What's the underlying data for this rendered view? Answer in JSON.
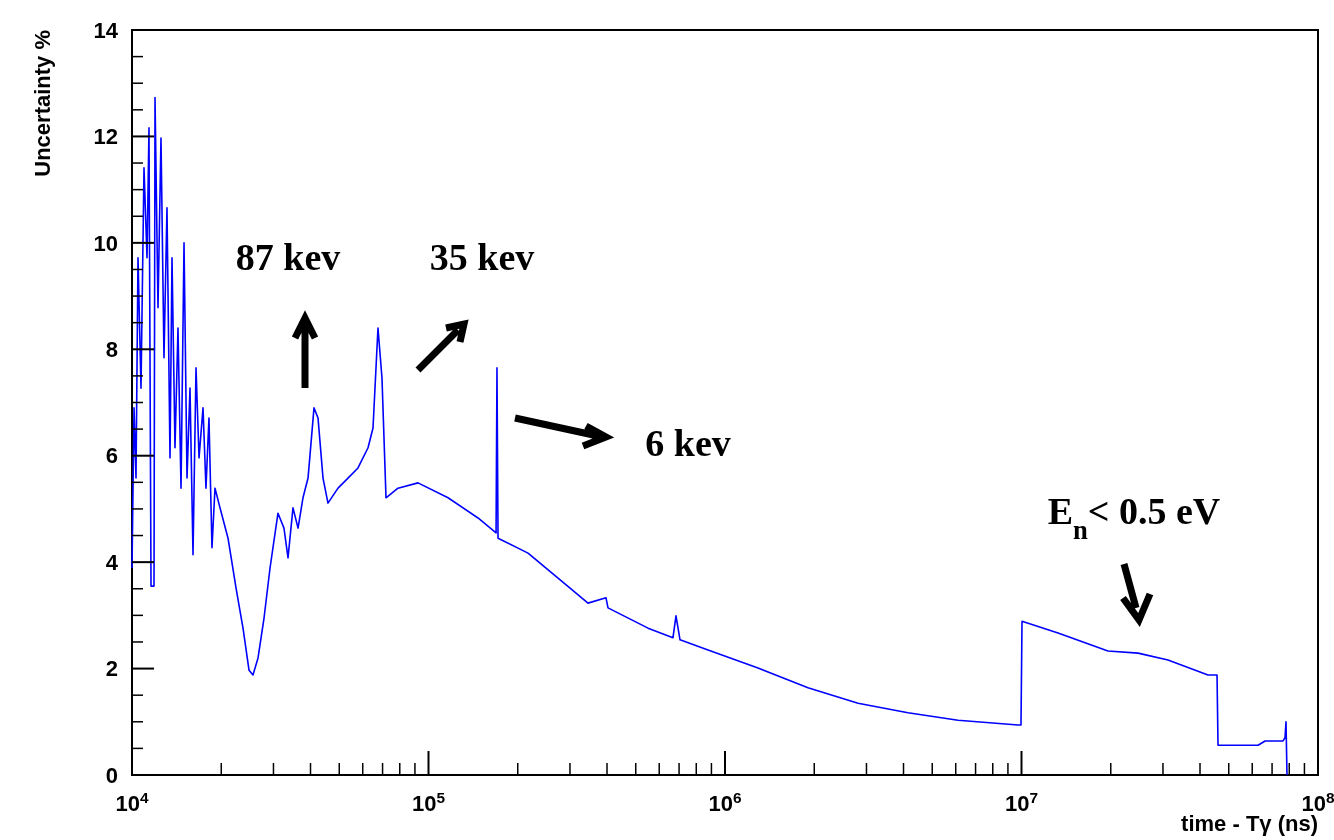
{
  "chart_data": {
    "type": "line",
    "xlabel": "time - Tγ (ns)",
    "ylabel": "Uncertainty %",
    "log": "x",
    "xlim": [
      10000,
      100000000
    ],
    "ylim": [
      0,
      14
    ],
    "xticks": [
      {
        "value": 10000,
        "label": "10$^{4}$"
      },
      {
        "value": 100000,
        "label": "10$^{5}$"
      },
      {
        "value": 1000000,
        "label": "10$^{6}$"
      },
      {
        "value": 10000000,
        "label": "10$^{7}$"
      },
      {
        "value": 100000000,
        "label": "10$^{8}$"
      }
    ],
    "yticks": [
      0,
      2,
      4,
      6,
      8,
      10,
      12,
      14
    ],
    "grid": false,
    "marker": "none",
    "line_style": "solid",
    "annotations": [
      "87 kev",
      "35 kev",
      "6 kev",
      "E$_{n}$< 0.5 eV"
    ],
    "series": [
      {
        "color": "#0000ff",
        "x": [
          10000,
          10160,
          10316,
          10477,
          10724,
          10977,
          11236,
          11410,
          11590,
          11864,
          11957,
          12237,
          12525,
          12820,
          13122,
          13434,
          13643,
          13963,
          14292,
          14633,
          14978,
          15330,
          15690,
          16060,
          16440,
          16830,
          17360,
          17760,
          18180,
          18610,
          19050,
          19810,
          21080,
          22420,
          23680,
          24810,
          25590,
          26610,
          27880,
          29210,
          31070,
          32550,
          33590,
          34910,
          36310,
          37730,
          39240,
          41100,
          42400,
          44080,
          45810,
          49530,
          53520,
          57830,
          62520,
          64990,
          67550,
          69680,
          71890,
          78900,
          92160,
          116400,
          146900,
          169000,
          170200,
          171600,
          216600,
          273500,
          345100,
          396900,
          403100,
          550100,
          667700,
          683400,
          705200,
          876500,
          1292000,
          1905000,
          2810000,
          4142000,
          6107000,
          9730000,
          9960000,
          10040000,
          13280000,
          19570000,
          24720000,
          31190000,
          42560000,
          45650000,
          46000000,
          62800000,
          66300000,
          76200000,
          77400000,
          78000000,
          78600000
        ],
        "values": [
          3.89,
          6.9,
          5.58,
          9.72,
          7.27,
          11.41,
          9.72,
          12.16,
          3.55,
          3.55,
          12.73,
          8.78,
          11.97,
          7.84,
          10.66,
          5.96,
          9.72,
          6.15,
          8.4,
          5.39,
          10.0,
          5.58,
          7.27,
          4.14,
          7.65,
          5.96,
          6.9,
          5.39,
          6.71,
          4.27,
          5.39,
          5.02,
          4.45,
          3.52,
          2.76,
          1.97,
          1.88,
          2.2,
          2.95,
          3.89,
          4.92,
          4.64,
          4.08,
          5.02,
          4.64,
          5.21,
          5.58,
          6.9,
          6.71,
          5.58,
          5.11,
          5.39,
          5.58,
          5.77,
          6.15,
          6.52,
          8.4,
          7.46,
          5.21,
          5.39,
          5.49,
          5.21,
          4.83,
          4.55,
          7.65,
          4.45,
          4.17,
          3.7,
          3.23,
          3.33,
          3.14,
          2.76,
          2.58,
          2.99,
          2.54,
          2.35,
          2.01,
          1.64,
          1.35,
          1.17,
          1.03,
          0.94,
          0.94,
          2.89,
          2.67,
          2.33,
          2.29,
          2.16,
          1.88,
          1.88,
          0.56,
          0.56,
          0.64,
          0.64,
          0.7,
          1.0,
          0
        ]
      }
    ]
  }
}
